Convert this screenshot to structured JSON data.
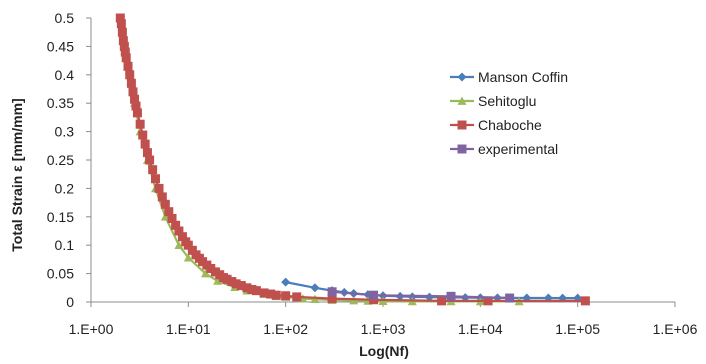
{
  "chart_data": {
    "type": "scatter",
    "title": "",
    "xlabel": "Log(Nf)",
    "ylabel": "Total Strain ε [mm/mm]",
    "x_scale": "log",
    "xlim": [
      1,
      1000000
    ],
    "ylim": [
      0,
      0.5
    ],
    "x_ticks": [
      {
        "value": 1,
        "label": "1.E+00"
      },
      {
        "value": 10,
        "label": "1.E+01"
      },
      {
        "value": 100,
        "label": "1.E+02"
      },
      {
        "value": 1000,
        "label": "1.E+03"
      },
      {
        "value": 10000,
        "label": "1.E+04"
      },
      {
        "value": 100000,
        "label": "1.E+05"
      },
      {
        "value": 1000000,
        "label": "1.E+06"
      }
    ],
    "y_ticks": [
      {
        "value": 0,
        "label": "0"
      },
      {
        "value": 0.05,
        "label": "0.05"
      },
      {
        "value": 0.1,
        "label": "0.1"
      },
      {
        "value": 0.15,
        "label": "0.15"
      },
      {
        "value": 0.2,
        "label": "0.2"
      },
      {
        "value": 0.25,
        "label": "0.25"
      },
      {
        "value": 0.3,
        "label": "0.3"
      },
      {
        "value": 0.35,
        "label": "0.35"
      },
      {
        "value": 0.4,
        "label": "0.4"
      },
      {
        "value": 0.45,
        "label": "0.45"
      },
      {
        "value": 0.5,
        "label": "0.5"
      }
    ],
    "grid": false,
    "legend_position": "top-right",
    "series": [
      {
        "name": "Manson Coffin",
        "color": "#4a7ebb",
        "marker": "diamond",
        "points": [
          [
            100,
            0.035
          ],
          [
            200,
            0.025
          ],
          [
            300,
            0.02
          ],
          [
            400,
            0.017
          ],
          [
            500,
            0.015
          ],
          [
            700,
            0.013
          ],
          [
            1000,
            0.011
          ],
          [
            1500,
            0.01
          ],
          [
            2000,
            0.009
          ],
          [
            3000,
            0.0085
          ],
          [
            5000,
            0.008
          ],
          [
            7000,
            0.0078
          ],
          [
            10000,
            0.0075
          ],
          [
            15000,
            0.0073
          ],
          [
            20000,
            0.0072
          ],
          [
            30000,
            0.007
          ],
          [
            50000,
            0.007
          ],
          [
            70000,
            0.0068
          ],
          [
            100000,
            0.0068
          ]
        ]
      },
      {
        "name": "Sehitoglu",
        "color": "#9bbb59",
        "marker": "triangle",
        "points": [
          [
            2,
            0.5
          ],
          [
            2.2,
            0.45
          ],
          [
            2.5,
            0.4
          ],
          [
            2.8,
            0.35
          ],
          [
            3.2,
            0.3
          ],
          [
            3.8,
            0.25
          ],
          [
            4.6,
            0.2
          ],
          [
            5.8,
            0.15
          ],
          [
            8,
            0.1
          ],
          [
            10,
            0.078
          ],
          [
            15,
            0.05
          ],
          [
            20,
            0.037
          ],
          [
            30,
            0.026
          ],
          [
            40,
            0.02
          ],
          [
            60,
            0.014
          ],
          [
            80,
            0.01
          ],
          [
            100,
            0.009
          ],
          [
            150,
            0.006
          ],
          [
            200,
            0.005
          ],
          [
            300,
            0.0035
          ],
          [
            500,
            0.0025
          ],
          [
            700,
            0.002
          ],
          [
            1000,
            0.0015
          ],
          [
            2000,
            0.001
          ],
          [
            5000,
            0.001
          ],
          [
            10000,
            0.001
          ],
          [
            25000,
            0.001
          ]
        ]
      },
      {
        "name": "Chaboche",
        "color": "#c0504d",
        "marker": "square",
        "points": [
          [
            2,
            0.5
          ],
          [
            2.05,
            0.49
          ],
          [
            2.1,
            0.475
          ],
          [
            2.15,
            0.46
          ],
          [
            2.2,
            0.45
          ],
          [
            2.25,
            0.44
          ],
          [
            2.3,
            0.43
          ],
          [
            2.4,
            0.415
          ],
          [
            2.5,
            0.4
          ],
          [
            2.6,
            0.385
          ],
          [
            2.7,
            0.37
          ],
          [
            2.8,
            0.357
          ],
          [
            2.9,
            0.345
          ],
          [
            3,
            0.333
          ],
          [
            3.2,
            0.313
          ],
          [
            3.4,
            0.294
          ],
          [
            3.6,
            0.278
          ],
          [
            3.8,
            0.263
          ],
          [
            4,
            0.25
          ],
          [
            4.3,
            0.233
          ],
          [
            4.6,
            0.217
          ],
          [
            5,
            0.2
          ],
          [
            5.4,
            0.185
          ],
          [
            5.8,
            0.172
          ],
          [
            6.3,
            0.159
          ],
          [
            6.8,
            0.147
          ],
          [
            7.4,
            0.135
          ],
          [
            8,
            0.125
          ],
          [
            8.7,
            0.115
          ],
          [
            9.4,
            0.106
          ],
          [
            10,
            0.1
          ],
          [
            11,
            0.091
          ],
          [
            12,
            0.083
          ],
          [
            13,
            0.077
          ],
          [
            14,
            0.071
          ],
          [
            15.5,
            0.065
          ],
          [
            17,
            0.059
          ],
          [
            19,
            0.053
          ],
          [
            21,
            0.048
          ],
          [
            23,
            0.043
          ],
          [
            25,
            0.04
          ],
          [
            28,
            0.036
          ],
          [
            31,
            0.032
          ],
          [
            35,
            0.029
          ],
          [
            40,
            0.025
          ],
          [
            45,
            0.022
          ],
          [
            50,
            0.02
          ],
          [
            60,
            0.016
          ],
          [
            70,
            0.014
          ],
          [
            80,
            0.012
          ],
          [
            100,
            0.011
          ],
          [
            130,
            0.009
          ],
          [
            300,
            0.006
          ],
          [
            800,
            0.004
          ],
          [
            4000,
            0.002
          ],
          [
            12000,
            0.002
          ],
          [
            120000,
            0.002
          ]
        ]
      },
      {
        "name": "experimental",
        "color": "#8064a2",
        "marker": "square",
        "points": [
          [
            300,
            0.018
          ],
          [
            800,
            0.012
          ],
          [
            5000,
            0.01
          ],
          [
            20000,
            0.007
          ]
        ]
      }
    ]
  }
}
